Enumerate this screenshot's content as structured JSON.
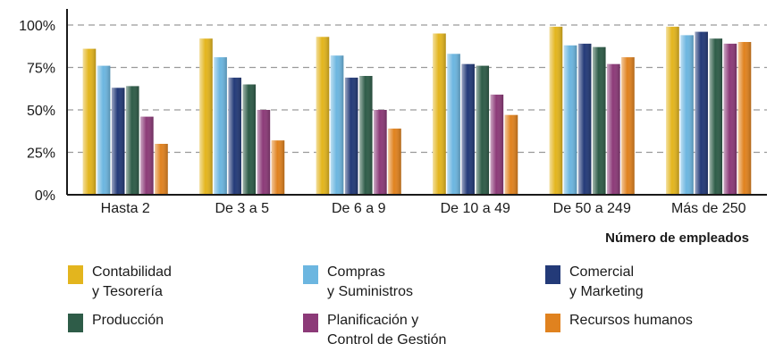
{
  "chart_data": {
    "type": "bar",
    "title": "",
    "xlabel": "Número de empleados",
    "ylabel": "",
    "ylim": [
      0,
      100
    ],
    "yticks": [
      "0%",
      "25%",
      "50%",
      "75%",
      "100%"
    ],
    "grid": "horizontal dashed",
    "legend_position": "bottom",
    "categories": [
      "Hasta 2",
      "De 3 a 5",
      "De 6 a 9",
      "De 10 a 49",
      "De 50 a 249",
      "Más de 250"
    ],
    "series": [
      {
        "name": "Contabilidad\ny Tesorería",
        "color": "#e3b51e",
        "values": [
          86,
          92,
          93,
          95,
          99,
          99
        ]
      },
      {
        "name": "Compras\ny Suministros",
        "color": "#6cb6e0",
        "values": [
          76,
          81,
          82,
          83,
          88,
          94
        ]
      },
      {
        "name": "Comercial\ny Marketing",
        "color": "#233a78",
        "values": [
          63,
          69,
          69,
          77,
          89,
          96
        ]
      },
      {
        "name": "Producción",
        "color": "#2e5c48",
        "values": [
          64,
          65,
          70,
          76,
          87,
          92
        ]
      },
      {
        "name": "Planificación y\nControl de Gestión",
        "color": "#8c3a78",
        "values": [
          46,
          50,
          50,
          59,
          77,
          89
        ]
      },
      {
        "name": "Recursos humanos",
        "color": "#e0821f",
        "values": [
          30,
          32,
          39,
          47,
          81,
          90
        ]
      }
    ]
  }
}
